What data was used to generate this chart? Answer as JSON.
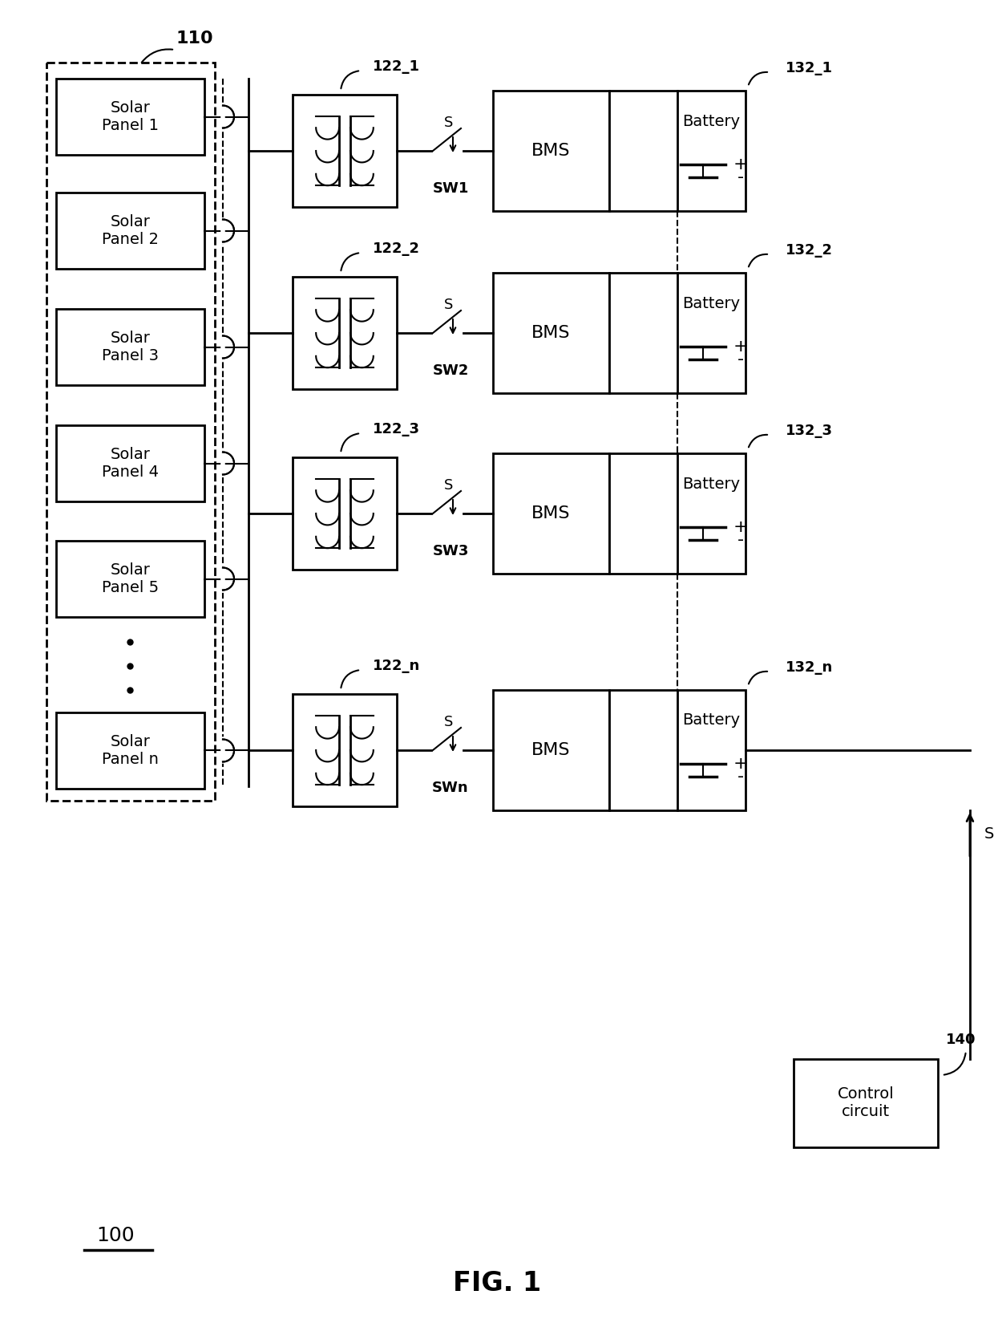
{
  "title": "FIG. 1",
  "ref_100": "100",
  "ref_110": "110",
  "ref_122_1": "122_1",
  "ref_122_2": "122_2",
  "ref_122_3": "122_3",
  "ref_122_n": "122_n",
  "ref_132_1": "132_1",
  "ref_132_2": "132_2",
  "ref_132_3": "132_3",
  "ref_132_n": "132_n",
  "ref_140": "140",
  "bg_color": "#ffffff",
  "line_color": "#000000",
  "font_size_label": 14,
  "font_size_ref": 13,
  "font_size_title": 24,
  "font_size_sw": 13
}
